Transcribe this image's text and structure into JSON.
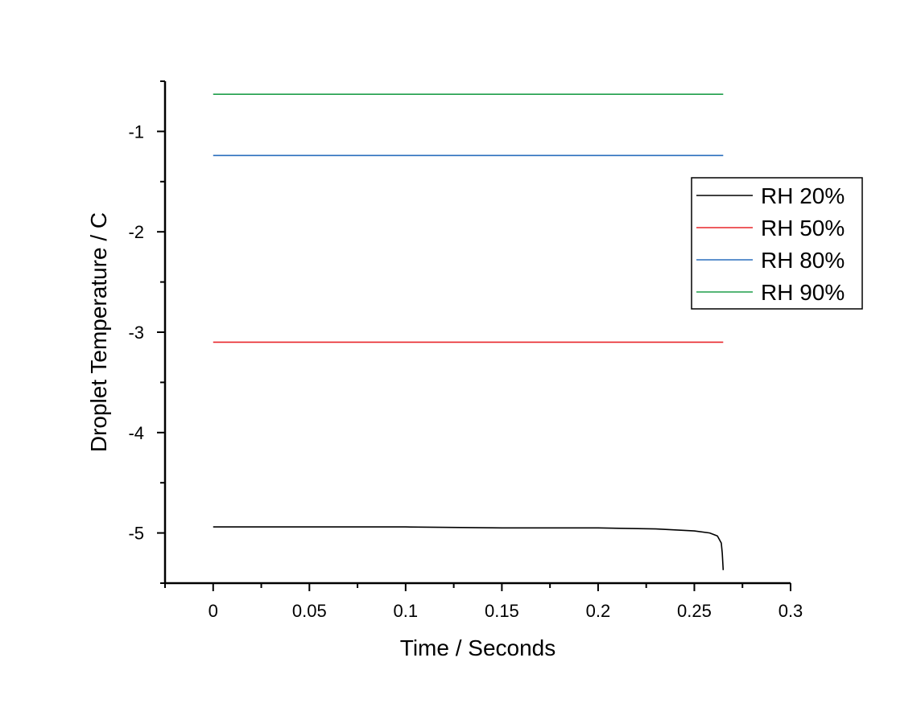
{
  "chart_data": {
    "type": "line",
    "title": "",
    "xlabel": "Time / Seconds",
    "ylabel": "Droplet Temperature / C",
    "xlim": [
      -0.025,
      0.3
    ],
    "ylim": [
      -5.5,
      -0.5
    ],
    "x_ticks": [
      0,
      0.05,
      0.1,
      0.15,
      0.2,
      0.25,
      0.3
    ],
    "x_tick_labels": [
      "0",
      "0.05",
      "0.1",
      "0.15",
      "0.2",
      "0.25",
      "0.3"
    ],
    "y_ticks": [
      -1,
      -2,
      -3,
      -4,
      -5
    ],
    "y_tick_labels": [
      "-1",
      "-2",
      "-3",
      "-4",
      "-5"
    ],
    "grid": false,
    "legend_position": "right",
    "series": [
      {
        "name": "RH 20%",
        "color": "#000000",
        "points": [
          [
            0,
            -4.94
          ],
          [
            0.05,
            -4.94
          ],
          [
            0.1,
            -4.94
          ],
          [
            0.15,
            -4.95
          ],
          [
            0.2,
            -4.95
          ],
          [
            0.23,
            -4.96
          ],
          [
            0.25,
            -4.98
          ],
          [
            0.258,
            -5.0
          ],
          [
            0.262,
            -5.03
          ],
          [
            0.264,
            -5.1
          ],
          [
            0.2645,
            -5.2
          ],
          [
            0.265,
            -5.37
          ]
        ]
      },
      {
        "name": "RH 50%",
        "color": "#e8262a",
        "points": [
          [
            0,
            -3.1
          ],
          [
            0.265,
            -3.1
          ]
        ]
      },
      {
        "name": "RH 80%",
        "color": "#2a6ebd",
        "points": [
          [
            0,
            -1.24
          ],
          [
            0.265,
            -1.24
          ]
        ]
      },
      {
        "name": "RH 90%",
        "color": "#1f9e4a",
        "points": [
          [
            0,
            -0.63
          ],
          [
            0.265,
            -0.63
          ]
        ]
      }
    ]
  }
}
